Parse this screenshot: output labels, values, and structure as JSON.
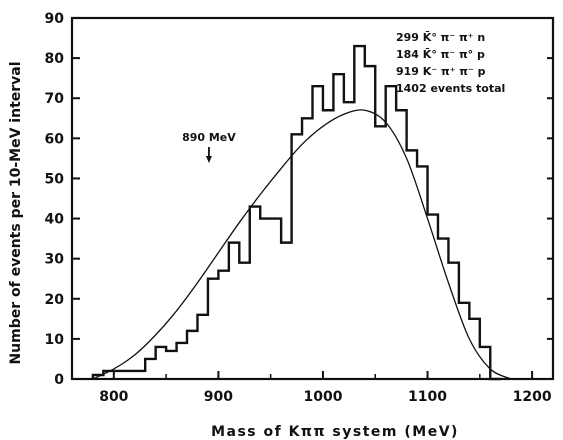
{
  "chart_data": {
    "type": "histogram",
    "xlabel": "Mass of Kππ system (MeV)",
    "ylabel": "Number of events per 10-MeV interval",
    "xlim": [
      760,
      1220
    ],
    "ylim": [
      0,
      90
    ],
    "x_ticks": [
      "800",
      "900",
      "1000",
      "1100",
      "1200"
    ],
    "y_ticks": [
      "0",
      "10",
      "20",
      "30",
      "40",
      "50",
      "60",
      "70",
      "80",
      "90"
    ],
    "bin_width": 10,
    "bins": [
      {
        "x0": 780,
        "y": 1
      },
      {
        "x0": 790,
        "y": 2
      },
      {
        "x0": 800,
        "y": 2
      },
      {
        "x0": 810,
        "y": 2
      },
      {
        "x0": 820,
        "y": 2
      },
      {
        "x0": 830,
        "y": 5
      },
      {
        "x0": 840,
        "y": 8
      },
      {
        "x0": 850,
        "y": 7
      },
      {
        "x0": 860,
        "y": 9
      },
      {
        "x0": 870,
        "y": 12
      },
      {
        "x0": 880,
        "y": 16
      },
      {
        "x0": 890,
        "y": 25
      },
      {
        "x0": 900,
        "y": 27
      },
      {
        "x0": 910,
        "y": 34
      },
      {
        "x0": 920,
        "y": 29
      },
      {
        "x0": 930,
        "y": 43
      },
      {
        "x0": 940,
        "y": 40
      },
      {
        "x0": 950,
        "y": 40
      },
      {
        "x0": 960,
        "y": 34
      },
      {
        "x0": 970,
        "y": 61
      },
      {
        "x0": 980,
        "y": 65
      },
      {
        "x0": 990,
        "y": 73
      },
      {
        "x0": 1000,
        "y": 67
      },
      {
        "x0": 1010,
        "y": 76
      },
      {
        "x0": 1020,
        "y": 69
      },
      {
        "x0": 1030,
        "y": 83
      },
      {
        "x0": 1040,
        "y": 78
      },
      {
        "x0": 1050,
        "y": 63
      },
      {
        "x0": 1060,
        "y": 73
      },
      {
        "x0": 1070,
        "y": 67
      },
      {
        "x0": 1080,
        "y": 57
      },
      {
        "x0": 1090,
        "y": 53
      },
      {
        "x0": 1100,
        "y": 41
      },
      {
        "x0": 1110,
        "y": 35
      },
      {
        "x0": 1120,
        "y": 29
      },
      {
        "x0": 1130,
        "y": 19
      },
      {
        "x0": 1140,
        "y": 15
      },
      {
        "x0": 1150,
        "y": 8
      },
      {
        "x0": 1160,
        "y": 0
      }
    ],
    "fit_curve": {
      "x": [
        780,
        800,
        820,
        840,
        860,
        880,
        900,
        920,
        940,
        960,
        980,
        1000,
        1020,
        1040,
        1060,
        1080,
        1100,
        1120,
        1140,
        1160,
        1180
      ],
      "y": [
        0,
        2.5,
        6,
        11,
        17,
        24,
        31.5,
        39,
        46,
        52.5,
        58.5,
        63,
        66,
        67,
        64,
        55,
        40,
        24,
        10,
        2.5,
        0
      ]
    },
    "annotations": {
      "marker_label": "890 MeV",
      "marker_x": 890,
      "legend_lines": [
        "299  K̄° π⁻ π⁺ n",
        "184  K̄° π⁻ π° p",
        "919  K⁻ π⁺ π⁻ p",
        "1402  events total"
      ]
    },
    "grid": false
  }
}
